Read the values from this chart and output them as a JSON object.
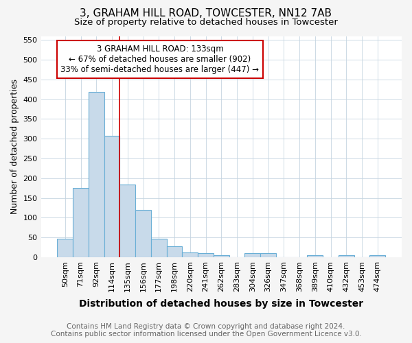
{
  "title": "3, GRAHAM HILL ROAD, TOWCESTER, NN12 7AB",
  "subtitle": "Size of property relative to detached houses in Towcester",
  "xlabel": "Distribution of detached houses by size in Towcester",
  "ylabel": "Number of detached properties",
  "footnote1": "Contains HM Land Registry data © Crown copyright and database right 2024.",
  "footnote2": "Contains public sector information licensed under the Open Government Licence v3.0.",
  "categories": [
    "50sqm",
    "71sqm",
    "92sqm",
    "114sqm",
    "135sqm",
    "156sqm",
    "177sqm",
    "198sqm",
    "220sqm",
    "241sqm",
    "262sqm",
    "283sqm",
    "304sqm",
    "326sqm",
    "347sqm",
    "368sqm",
    "389sqm",
    "410sqm",
    "432sqm",
    "453sqm",
    "474sqm"
  ],
  "values": [
    46,
    175,
    418,
    307,
    184,
    120,
    46,
    27,
    12,
    10,
    5,
    0,
    10,
    10,
    0,
    0,
    5,
    0,
    5,
    0,
    5
  ],
  "bar_color": "#c8daea",
  "bar_edge_color": "#6aafd6",
  "vline_index": 4,
  "vline_color": "#cc0000",
  "annotation_text": "3 GRAHAM HILL ROAD: 133sqm\n← 67% of detached houses are smaller (902)\n33% of semi-detached houses are larger (447) →",
  "annotation_box_color": "#ffffff",
  "annotation_box_edge": "#cc0000",
  "ylim": [
    0,
    560
  ],
  "yticks": [
    0,
    50,
    100,
    150,
    200,
    250,
    300,
    350,
    400,
    450,
    500,
    550
  ],
  "background_color": "#f5f5f5",
  "plot_background": "#ffffff",
  "title_fontsize": 11,
  "subtitle_fontsize": 9.5,
  "xlabel_fontsize": 10,
  "ylabel_fontsize": 9,
  "tick_fontsize": 8,
  "annotation_fontsize": 8.5,
  "footnote_fontsize": 7.5
}
